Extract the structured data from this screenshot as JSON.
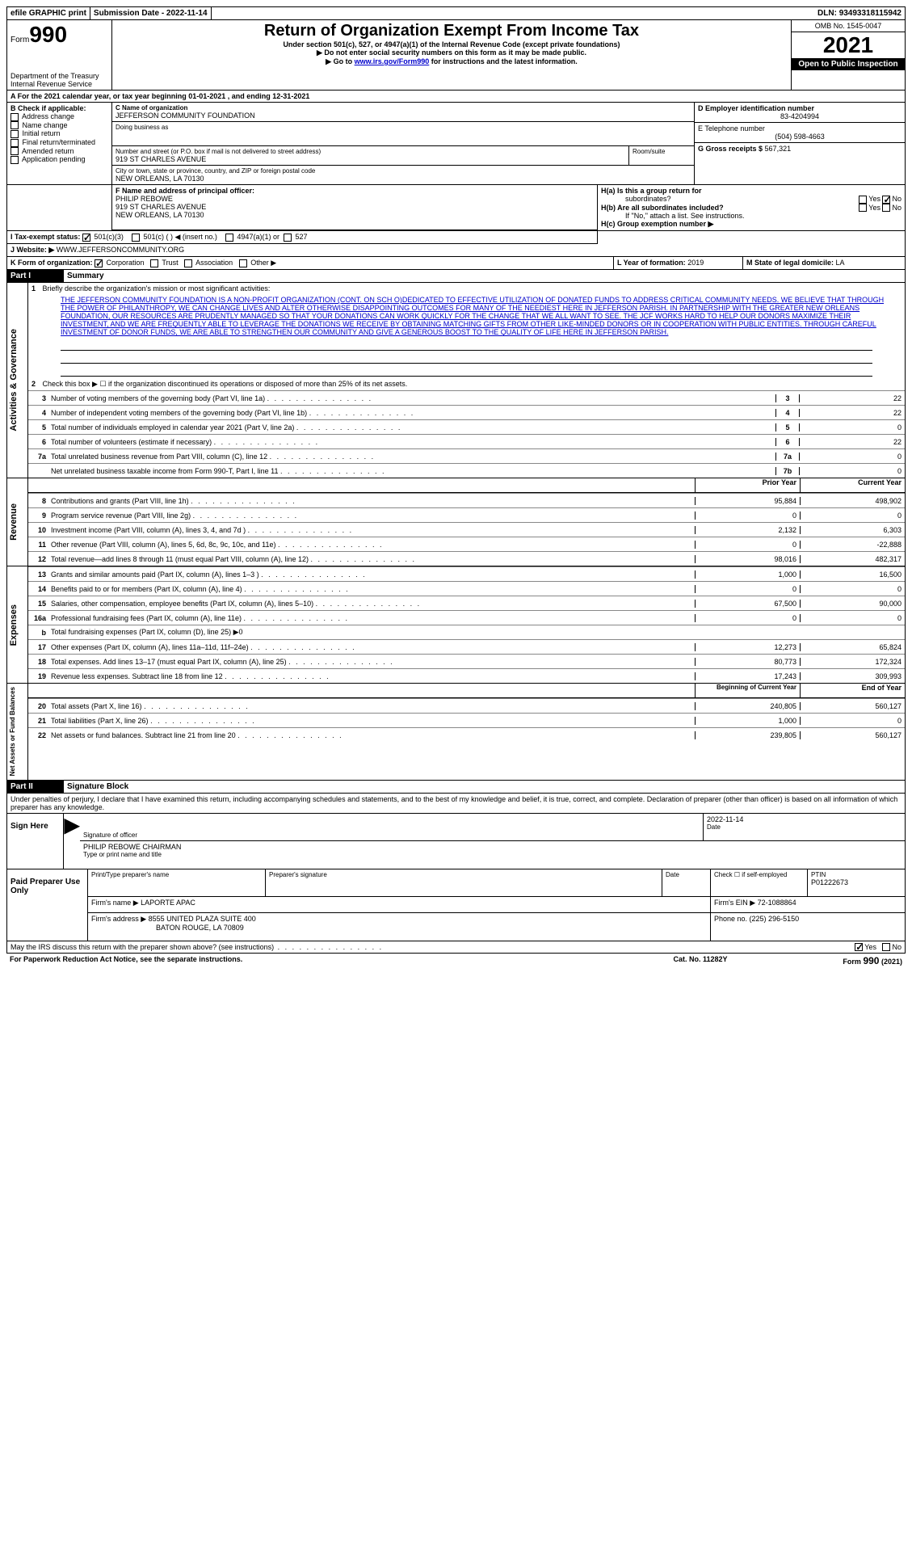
{
  "topbar": {
    "efile": "efile GRAPHIC print",
    "submission_label": "Submission Date - ",
    "submission_date": "2022-11-14",
    "dln_label": "DLN: ",
    "dln": "93493318115942"
  },
  "header": {
    "form_label": "Form",
    "form_number": "990",
    "dept": "Department of the Treasury",
    "irs": "Internal Revenue Service",
    "title": "Return of Organization Exempt From Income Tax",
    "subtitle": "Under section 501(c), 527, or 4947(a)(1) of the Internal Revenue Code (except private foundations)",
    "instr1": "▶ Do not enter social security numbers on this form as it may be made public.",
    "instr2_prefix": "▶ Go to ",
    "instr2_link": "www.irs.gov/Form990",
    "instr2_suffix": " for instructions and the latest information.",
    "omb": "OMB No. 1545-0047",
    "year": "2021",
    "open": "Open to Public Inspection"
  },
  "period": {
    "line_a": "A For the 2021 calendar year, or tax year beginning ",
    "begin": "01-01-2021",
    "mid": " , and ending ",
    "end": "12-31-2021"
  },
  "boxB": {
    "title": "B Check if applicable:",
    "items": [
      "Address change",
      "Name change",
      "Initial return",
      "Final return/terminated",
      "Amended return",
      "Application pending"
    ]
  },
  "boxC": {
    "label_name": "C Name of organization",
    "org_name": "JEFFERSON COMMUNITY FOUNDATION",
    "dba_label": "Doing business as",
    "street_label": "Number and street (or P.O. box if mail is not delivered to street address)",
    "room_label": "Room/suite",
    "street": "919 ST CHARLES AVENUE",
    "city_label": "City or town, state or province, country, and ZIP or foreign postal code",
    "city": "NEW ORLEANS, LA  70130"
  },
  "boxD": {
    "label": "D Employer identification number",
    "value": "83-4204994"
  },
  "boxE": {
    "label": "E Telephone number",
    "value": "(504) 598-4663"
  },
  "boxG": {
    "label": "G Gross receipts $ ",
    "value": "567,321"
  },
  "boxF": {
    "label": "F Name and address of principal officer:",
    "name": "PHILIP REBOWE",
    "addr1": "919 ST CHARLES AVENUE",
    "addr2": "NEW ORLEANS, LA  70130"
  },
  "boxH": {
    "ha_label": "H(a)  Is this a group return for",
    "ha_sub": "subordinates?",
    "hb_label": "H(b)  Are all subordinates included?",
    "hb_note": "If \"No,\" attach a list. See instructions.",
    "hc_label": "H(c)  Group exemption number ▶",
    "yes": "Yes",
    "no": "No"
  },
  "boxI": {
    "label": "I    Tax-exempt status:",
    "o1": "501(c)(3)",
    "o2": "501(c) (  ) ◀ (insert no.)",
    "o3": "4947(a)(1) or",
    "o4": "527"
  },
  "boxJ": {
    "label": "J   Website: ▶",
    "value": "WWW.JEFFERSONCOMMUNITY.ORG"
  },
  "boxK": {
    "label": "K Form of organization:",
    "o1": "Corporation",
    "o2": "Trust",
    "o3": "Association",
    "o4": "Other ▶"
  },
  "boxL": {
    "label": "L Year of formation: ",
    "value": "2019"
  },
  "boxM": {
    "label": "M State of legal domicile: ",
    "value": "LA"
  },
  "part1": {
    "header": "Part I",
    "title": "Summary",
    "l1_label": "1",
    "l1_text": "Briefly describe the organization's mission or most significant activities:",
    "mission": "THE JEFFERSON COMMUNITY FOUNDATION IS A NON-PROFIT ORGANIZATION (CONT. ON SCH O)DEDICATED TO EFFECTIVE UTILIZATION OF DONATED FUNDS TO ADDRESS CRITICAL COMMUNITY NEEDS. WE BELIEVE THAT THROUGH THE POWER OF PHILANTHROPY, WE CAN CHANGE LIVES AND ALTER OTHERWISE DISAPPOINTING OUTCOMES FOR MANY OF THE NEEDIEST HERE IN JEFFERSON PARISH. IN PARTNERSHIP WITH THE GREATER NEW ORLEANS FOUNDATION, OUR RESOURCES ARE PRUDENTLY MANAGED SO THAT YOUR DONATIONS CAN WORK QUICKLY FOR THE CHANGE THAT WE ALL WANT TO SEE. THE JCF WORKS HARD TO HELP OUR DONORS MAXIMIZE THEIR INVESTMENT, AND WE ARE FREQUENTLY ABLE TO LEVERAGE THE DONATIONS WE RECEIVE BY OBTAINING MATCHING GIFTS FROM OTHER LIKE-MINDED DONORS OR IN COOPERATION WITH PUBLIC ENTITIES. THROUGH CAREFUL INVESTMENT OF DONOR FUNDS, WE ARE ABLE TO STRENGTHEN OUR COMMUNITY AND GIVE A GENEROUS BOOST TO THE QUALITY OF LIFE HERE IN JEFFERSON PARISH.",
    "l2": "Check this box ▶ ☐ if the organization discontinued its operations or disposed of more than 25% of its net assets.",
    "sec_gov": "Activities & Governance",
    "sec_rev": "Revenue",
    "sec_exp": "Expenses",
    "sec_net": "Net Assets or Fund Balances",
    "col_prior": "Prior Year",
    "col_current": "Current Year",
    "col_begin": "Beginning of Current Year",
    "col_end": "End of Year",
    "gov_lines": [
      {
        "n": "3",
        "d": "Number of voting members of the governing body (Part VI, line 1a)",
        "k": "3",
        "v": "22"
      },
      {
        "n": "4",
        "d": "Number of independent voting members of the governing body (Part VI, line 1b)",
        "k": "4",
        "v": "22"
      },
      {
        "n": "5",
        "d": "Total number of individuals employed in calendar year 2021 (Part V, line 2a)",
        "k": "5",
        "v": "0"
      },
      {
        "n": "6",
        "d": "Total number of volunteers (estimate if necessary)",
        "k": "6",
        "v": "22"
      },
      {
        "n": "7a",
        "d": "Total unrelated business revenue from Part VIII, column (C), line 12",
        "k": "7a",
        "v": "0"
      },
      {
        "n": "",
        "d": "Net unrelated business taxable income from Form 990-T, Part I, line 11",
        "k": "7b",
        "v": "0"
      }
    ],
    "rev_lines": [
      {
        "n": "8",
        "d": "Contributions and grants (Part VIII, line 1h)",
        "p": "95,884",
        "c": "498,902"
      },
      {
        "n": "9",
        "d": "Program service revenue (Part VIII, line 2g)",
        "p": "0",
        "c": "0"
      },
      {
        "n": "10",
        "d": "Investment income (Part VIII, column (A), lines 3, 4, and 7d )",
        "p": "2,132",
        "c": "6,303"
      },
      {
        "n": "11",
        "d": "Other revenue (Part VIII, column (A), lines 5, 6d, 8c, 9c, 10c, and 11e)",
        "p": "0",
        "c": "-22,888"
      },
      {
        "n": "12",
        "d": "Total revenue—add lines 8 through 11 (must equal Part VIII, column (A), line 12)",
        "p": "98,016",
        "c": "482,317"
      }
    ],
    "exp_lines": [
      {
        "n": "13",
        "d": "Grants and similar amounts paid (Part IX, column (A), lines 1–3 )",
        "p": "1,000",
        "c": "16,500"
      },
      {
        "n": "14",
        "d": "Benefits paid to or for members (Part IX, column (A), line 4)",
        "p": "0",
        "c": "0"
      },
      {
        "n": "15",
        "d": "Salaries, other compensation, employee benefits (Part IX, column (A), lines 5–10)",
        "p": "67,500",
        "c": "90,000"
      },
      {
        "n": "16a",
        "d": "Professional fundraising fees (Part IX, column (A), line 11e)",
        "p": "0",
        "c": "0"
      },
      {
        "n": "b",
        "d": "Total fundraising expenses (Part IX, column (D), line 25) ▶0",
        "p": "",
        "c": "",
        "grey": true
      },
      {
        "n": "17",
        "d": "Other expenses (Part IX, column (A), lines 11a–11d, 11f–24e)",
        "p": "12,273",
        "c": "65,824"
      },
      {
        "n": "18",
        "d": "Total expenses. Add lines 13–17 (must equal Part IX, column (A), line 25)",
        "p": "80,773",
        "c": "172,324"
      },
      {
        "n": "19",
        "d": "Revenue less expenses. Subtract line 18 from line 12",
        "p": "17,243",
        "c": "309,993"
      }
    ],
    "net_lines": [
      {
        "n": "20",
        "d": "Total assets (Part X, line 16)",
        "p": "240,805",
        "c": "560,127"
      },
      {
        "n": "21",
        "d": "Total liabilities (Part X, line 26)",
        "p": "1,000",
        "c": "0"
      },
      {
        "n": "22",
        "d": "Net assets or fund balances. Subtract line 21 from line 20",
        "p": "239,805",
        "c": "560,127"
      }
    ]
  },
  "part2": {
    "header": "Part II",
    "title": "Signature Block",
    "perjury": "Under penalties of perjury, I declare that I have examined this return, including accompanying schedules and statements, and to the best of my knowledge and belief, it is true, correct, and complete. Declaration of preparer (other than officer) is based on all information of which preparer has any knowledge.",
    "sign_here": "Sign Here",
    "sig_officer": "Signature of officer",
    "date_label": "Date",
    "sig_date": "2022-11-14",
    "officer_name": "PHILIP REBOWE CHAIRMAN",
    "type_name": "Type or print name and title",
    "paid_prep": "Paid Preparer Use Only",
    "prep_name_label": "Print/Type preparer's name",
    "prep_sig_label": "Preparer's signature",
    "self_emp": "Check ☐ if self-employed",
    "ptin_label": "PTIN",
    "ptin": "P01222673",
    "firm_name_label": "Firm's name    ▶ ",
    "firm_name": "LAPORTE APAC",
    "firm_ein_label": "Firm's EIN ▶ ",
    "firm_ein": "72-1088864",
    "firm_addr_label": "Firm's address ▶ ",
    "firm_addr1": "8555 UNITED PLAZA SUITE 400",
    "firm_addr2": "BATON ROUGE, LA  70809",
    "phone_label": "Phone no. ",
    "phone": "(225) 296-5150",
    "discuss": "May the IRS discuss this return with the preparer shown above? (see instructions)",
    "yes": "Yes",
    "no": "No"
  },
  "footer": {
    "paperwork": "For Paperwork Reduction Act Notice, see the separate instructions.",
    "catno": "Cat. No. 11282Y",
    "form": "Form 990 (2021)"
  }
}
